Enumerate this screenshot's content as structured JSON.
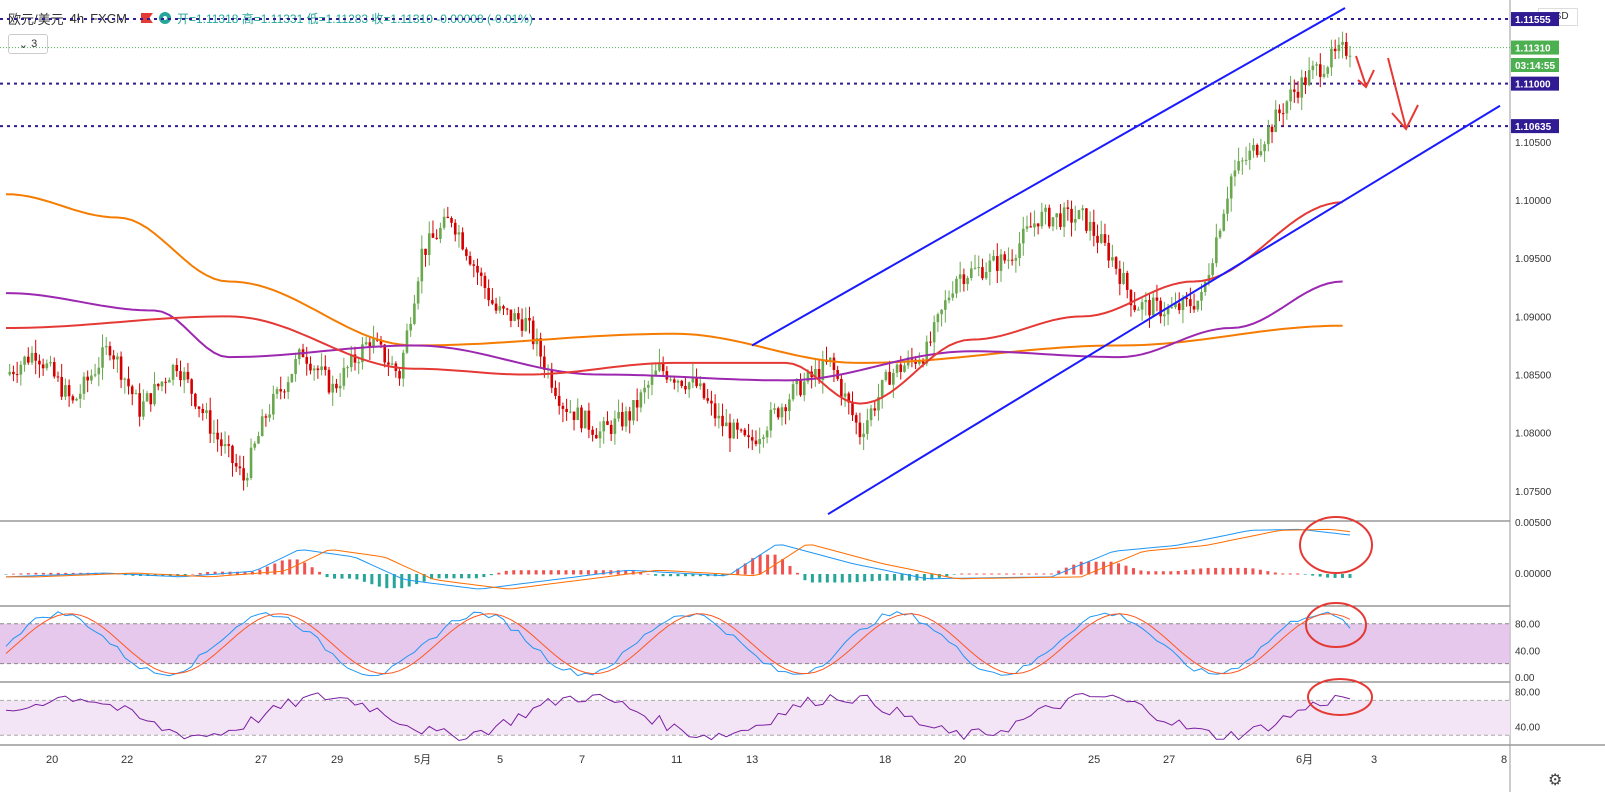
{
  "header": {
    "symbol": "欧元/美元",
    "timeframe": "4h",
    "source": "FXCM",
    "ohlc": "开=1.11318 高=1.11331 低=1.11283 收=1.11310 -0.00008 (-0.01%)"
  },
  "indicator_toggle": "3",
  "currency_label": "USD",
  "price_axis": {
    "ticks": [
      "1.10500",
      "1.10000",
      "1.09500",
      "1.09000",
      "1.08500",
      "1.08000",
      "1.07500"
    ],
    "labels": [
      {
        "text": "1.11555",
        "value": 1.11555,
        "color": "#311b92"
      },
      {
        "text": "1.11310",
        "value": 1.1131,
        "color": "#4caf50"
      },
      {
        "text": "03:14:55",
        "value": 1.1116,
        "color": "#4caf50"
      },
      {
        "text": "1.11000",
        "value": 1.11,
        "color": "#311b92"
      },
      {
        "text": "1.10635",
        "value": 1.10635,
        "color": "#311b92"
      }
    ]
  },
  "macd_axis": [
    "0.00500",
    "0.00000"
  ],
  "stoch_axis": [
    "80.00",
    "40.00",
    "0.00"
  ],
  "rsi_axis": [
    "80.00",
    "40.00"
  ],
  "date_axis": [
    {
      "label": "20",
      "x": 52
    },
    {
      "label": "22",
      "x": 127
    },
    {
      "label": "27",
      "x": 261
    },
    {
      "label": "29",
      "x": 337
    },
    {
      "label": "5月",
      "x": 420
    },
    {
      "label": "5",
      "x": 503
    },
    {
      "label": "7",
      "x": 585
    },
    {
      "label": "11",
      "x": 677
    },
    {
      "label": "13",
      "x": 752
    },
    {
      "label": "18",
      "x": 885
    },
    {
      "label": "20",
      "x": 960
    },
    {
      "label": "25",
      "x": 1094
    },
    {
      "label": "27",
      "x": 1169
    },
    {
      "label": "6月",
      "x": 1302
    },
    {
      "label": "3",
      "x": 1377
    },
    {
      "label": "8",
      "x": 1507
    }
  ],
  "chart_data": {
    "type": "candlestick",
    "instrument": "欧元/美元",
    "timeframe": "4h",
    "ylim": [
      1.0725,
      1.1165
    ],
    "horizontal_levels": [
      1.11555,
      1.11,
      1.10635
    ],
    "channel_lines": [
      {
        "from": [
          752,
          1.0875
        ],
        "to": [
          1345,
          1.1165
        ]
      },
      {
        "from": [
          828,
          1.073
        ],
        "to": [
          1500,
          1.1081
        ]
      }
    ],
    "anchors": [
      [
        0,
        1.085
      ],
      [
        8,
        1.087
      ],
      [
        18,
        1.0825
      ],
      [
        28,
        1.0875
      ],
      [
        36,
        1.082
      ],
      [
        46,
        1.086
      ],
      [
        56,
        1.08
      ],
      [
        64,
        1.076
      ],
      [
        70,
        1.0815
      ],
      [
        80,
        1.087
      ],
      [
        88,
        1.0838
      ],
      [
        98,
        1.088
      ],
      [
        106,
        1.085
      ],
      [
        112,
        1.0955
      ],
      [
        120,
        1.0985
      ],
      [
        132,
        1.0905
      ],
      [
        140,
        1.0895
      ],
      [
        150,
        1.0825
      ],
      [
        160,
        1.08
      ],
      [
        168,
        1.0815
      ],
      [
        176,
        1.0855
      ],
      [
        186,
        1.084
      ],
      [
        192,
        1.081
      ],
      [
        200,
        1.079
      ],
      [
        212,
        1.0835
      ],
      [
        222,
        1.086
      ],
      [
        230,
        1.08
      ],
      [
        238,
        1.085
      ],
      [
        248,
        1.087
      ],
      [
        256,
        1.0935
      ],
      [
        262,
        1.094
      ],
      [
        270,
        1.095
      ],
      [
        278,
        1.0985
      ],
      [
        290,
        1.0985
      ],
      [
        298,
        1.095
      ],
      [
        304,
        1.091
      ],
      [
        314,
        1.0905
      ],
      [
        322,
        1.0915
      ],
      [
        330,
        1.102
      ],
      [
        338,
        1.105
      ],
      [
        346,
        1.109
      ],
      [
        352,
        1.111
      ],
      [
        360,
        1.1128
      ],
      [
        362,
        1.1131
      ]
    ],
    "ma_red": [
      [
        0,
        1.089
      ],
      [
        60,
        1.09
      ],
      [
        110,
        1.0855
      ],
      [
        140,
        1.085
      ],
      [
        180,
        1.086
      ],
      [
        210,
        1.086
      ],
      [
        230,
        1.0825
      ],
      [
        260,
        1.088
      ],
      [
        290,
        1.09
      ],
      [
        320,
        1.093
      ],
      [
        360,
        1.0998
      ]
    ],
    "ma_purple": [
      [
        0,
        1.092
      ],
      [
        40,
        1.0905
      ],
      [
        60,
        1.0865
      ],
      [
        110,
        1.0875
      ],
      [
        160,
        1.085
      ],
      [
        210,
        1.0845
      ],
      [
        260,
        1.087
      ],
      [
        300,
        1.0865
      ],
      [
        330,
        1.089
      ],
      [
        360,
        1.093
      ]
    ],
    "ma_orange": [
      [
        0,
        1.1005
      ],
      [
        30,
        1.0985
      ],
      [
        60,
        1.093
      ],
      [
        110,
        1.0875
      ],
      [
        180,
        1.0885
      ],
      [
        230,
        1.086
      ],
      [
        300,
        1.0875
      ],
      [
        360,
        1.0892
      ]
    ]
  }
}
